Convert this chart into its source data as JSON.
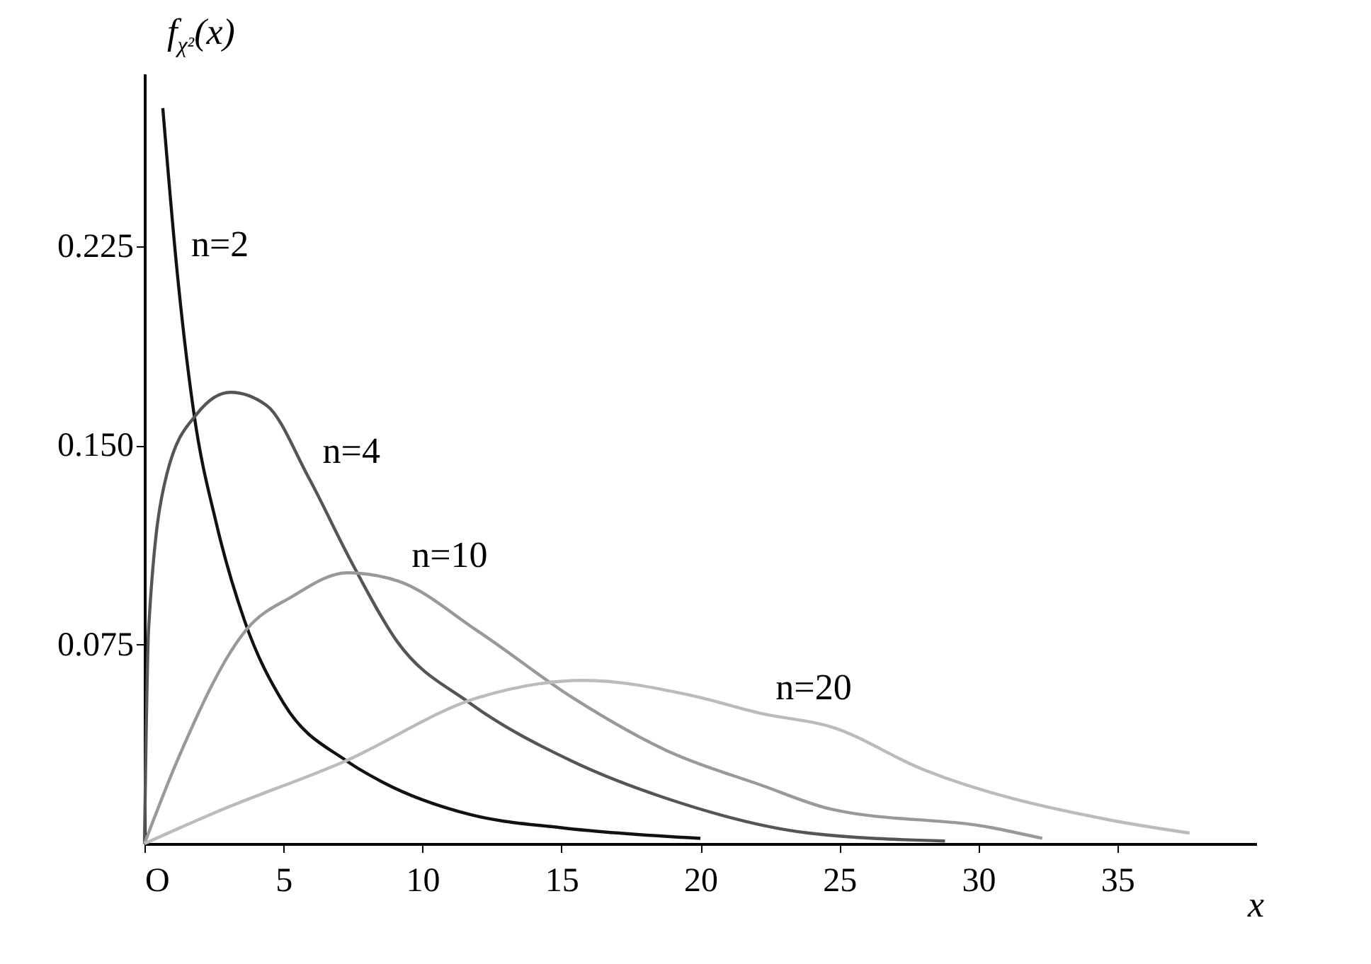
{
  "chart_data": {
    "type": "line",
    "xlabel": "x",
    "ylabel": "f$_{χ²}$(x)",
    "xlim": [
      0,
      40
    ],
    "ylim": [
      0,
      0.29
    ],
    "xticks": [
      {
        "value": 0,
        "label": "O"
      },
      5,
      10,
      15,
      20,
      25,
      30,
      35
    ],
    "yticks": [
      0.075,
      {
        "value": 0.15,
        "label": "0.150"
      },
      0.225
    ],
    "series": [
      {
        "color": "#111111",
        "x": [
          0.66,
          1.17,
          1.78,
          2.6,
          3.6,
          5.0,
          7.3,
          8.6,
          11.7,
          15,
          20
        ],
        "values": [
          0.277,
          0.216,
          0.162,
          0.12,
          0.084,
          0.053,
          0.031,
          0.023,
          0.011,
          0.006,
          0.002
        ]
      },
      {
        "color": "#555555",
        "x": [
          0,
          0.15,
          0.8,
          1.9,
          3.1,
          4.4,
          5.9,
          7.5,
          9.1,
          11.7,
          15.4,
          18.8,
          23.9,
          28.8
        ],
        "values": [
          0,
          0.081,
          0.139,
          0.162,
          0.17,
          0.165,
          0.138,
          0.105,
          0.076,
          0.053,
          0.031,
          0.017,
          0.004,
          0.001
        ]
      },
      {
        "color": "#999999",
        "x": [
          0,
          1.17,
          3.7,
          5.3,
          7.3,
          9.1,
          12,
          15.4,
          18.8,
          22.2,
          24.7,
          30.5,
          32.3
        ],
        "values": [
          0,
          0.031,
          0.081,
          0.093,
          0.102,
          0.099,
          0.08,
          0.055,
          0.035,
          0.022,
          0.013,
          0.006,
          0.002
        ]
      },
      {
        "color": "#bbbbbb",
        "x": [
          0,
          2.6,
          7.2,
          12,
          15.8,
          19.6,
          22.2,
          24.7,
          28,
          34.7,
          37.6
        ],
        "values": [
          0,
          0.012,
          0.031,
          0.055,
          0.0615,
          0.056,
          0.049,
          0.044,
          0.028,
          0.009,
          0.004
        ]
      }
    ],
    "annotations": [
      {
        "text": "n=2",
        "x": 1.17,
        "y": 0.216
      },
      {
        "text": "n=4",
        "x": 5.9,
        "y": 0.138
      },
      {
        "text": "n=10",
        "x": 9.1,
        "y": 0.099
      },
      {
        "text": "n=20",
        "x": 22.2,
        "y": 0.049
      }
    ]
  }
}
